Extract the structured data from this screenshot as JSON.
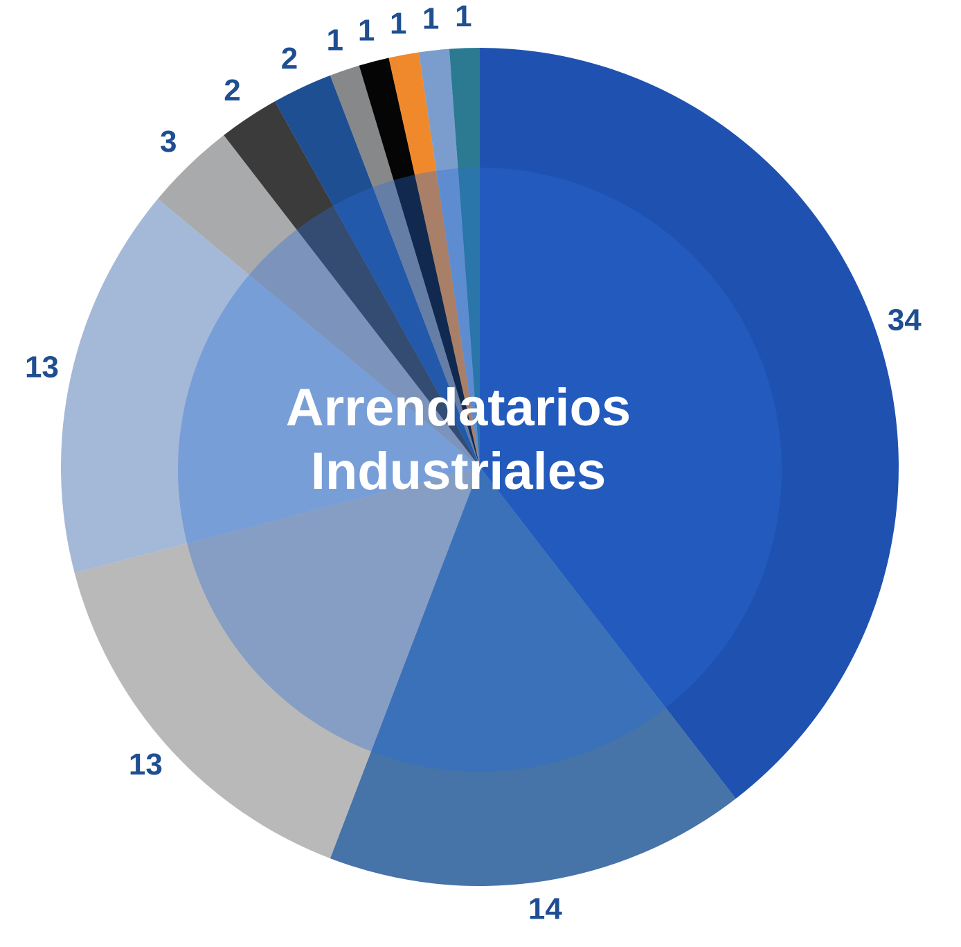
{
  "chart_data": {
    "type": "pie",
    "title": [
      "Arrendatarios",
      "Industriales"
    ],
    "values": [
      34,
      14,
      13,
      13,
      3,
      2,
      2,
      1,
      1,
      1,
      1,
      1
    ],
    "colors": [
      "#1f52b0",
      "#4673a8",
      "#b9b9b9",
      "#a4b9d8",
      "#a9aaac",
      "#3b3b3b",
      "#1f4f93",
      "#86888a",
      "#050505",
      "#f0892b",
      "#7b9dcd",
      "#2b7a92"
    ]
  }
}
